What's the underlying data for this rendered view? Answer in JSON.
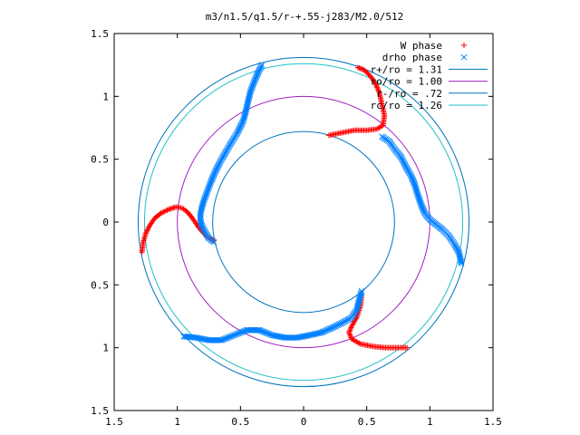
{
  "chart_data": {
    "type": "scatter",
    "title": "m3/n1.5/q1.5/r-+.55-j283/M2.0/512",
    "xlabel": "",
    "ylabel": "",
    "xlim": [
      -1.5,
      1.5
    ],
    "ylim": [
      -1.5,
      1.5
    ],
    "x_ticks": [
      -1.5,
      -1,
      -0.5,
      0,
      0.5,
      1,
      1.5
    ],
    "y_ticks": [
      -1.5,
      -1,
      -0.5,
      0,
      0.5,
      1,
      1.5
    ],
    "x_tick_labels": [
      "1.5",
      "1",
      "0.5",
      "0",
      "0.5",
      "1",
      "1.5"
    ],
    "y_tick_labels": [
      "1.5",
      "1",
      "0.5",
      "0",
      "0.5",
      "1",
      "1.5"
    ],
    "grid": false,
    "legend_position": "top-right",
    "legend": [
      {
        "label": "W phase",
        "marker": "+",
        "color": "#ff0000"
      },
      {
        "label": "drho phase",
        "marker": "x",
        "color": "#0080ff"
      },
      {
        "label": "r+/ro = 1.31",
        "line": true,
        "color": "#0072bd"
      },
      {
        "label": "ro/ro = 1.00",
        "line": true,
        "color": "#a020c0"
      },
      {
        "label": "r-/ro = .72",
        "line": true,
        "color": "#0072bd"
      },
      {
        "label": "rc/ro = 1.26",
        "line": true,
        "color": "#20c0c8"
      }
    ],
    "circles": [
      {
        "r": 1.31,
        "color": "#0072bd"
      },
      {
        "r": 1.0,
        "color": "#a020c0"
      },
      {
        "r": 0.72,
        "color": "#0072bd"
      },
      {
        "r": 1.26,
        "color": "#20c0c8"
      }
    ],
    "series": [
      {
        "name": "W phase",
        "marker": "+",
        "color": "#ff0000",
        "arms": [
          [
            [
              -1.28,
              -0.24
            ],
            [
              -1.27,
              -0.16
            ],
            [
              -1.25,
              -0.09
            ],
            [
              -1.22,
              -0.03
            ],
            [
              -1.18,
              0.03
            ],
            [
              -1.13,
              0.07
            ],
            [
              -1.07,
              0.1
            ],
            [
              -1.01,
              0.12
            ],
            [
              -0.96,
              0.11
            ],
            [
              -0.92,
              0.08
            ],
            [
              -0.88,
              0.03
            ],
            [
              -0.84,
              -0.03
            ],
            [
              -0.8,
              -0.08
            ],
            [
              -0.76,
              -0.12
            ],
            [
              -0.71,
              -0.15
            ]
          ],
          [
            [
              0.2,
              0.69
            ],
            [
              0.3,
              0.71
            ],
            [
              0.4,
              0.73
            ],
            [
              0.5,
              0.73
            ],
            [
              0.58,
              0.74
            ],
            [
              0.63,
              0.77
            ],
            [
              0.64,
              0.85
            ],
            [
              0.62,
              0.94
            ],
            [
              0.6,
              1.03
            ],
            [
              0.57,
              1.1
            ],
            [
              0.53,
              1.16
            ],
            [
              0.48,
              1.21
            ],
            [
              0.43,
              1.23
            ]
          ],
          [
            [
              0.46,
              -0.58
            ],
            [
              0.45,
              -0.67
            ],
            [
              0.42,
              -0.76
            ],
            [
              0.38,
              -0.83
            ],
            [
              0.36,
              -0.88
            ],
            [
              0.38,
              -0.93
            ],
            [
              0.45,
              -0.97
            ],
            [
              0.55,
              -0.99
            ],
            [
              0.65,
              -1.0
            ],
            [
              0.75,
              -1.0
            ],
            [
              0.82,
              -1.0
            ]
          ]
        ]
      },
      {
        "name": "drho phase",
        "marker": "x",
        "color": "#0080ff",
        "arms": [
          [
            [
              -0.33,
              1.25
            ],
            [
              -0.36,
              1.19
            ],
            [
              -0.39,
              1.12
            ],
            [
              -0.42,
              1.04
            ],
            [
              -0.44,
              0.96
            ],
            [
              -0.46,
              0.87
            ],
            [
              -0.48,
              0.8
            ],
            [
              -0.53,
              0.7
            ],
            [
              -0.58,
              0.62
            ],
            [
              -0.62,
              0.55
            ],
            [
              -0.66,
              0.48
            ],
            [
              -0.7,
              0.4
            ],
            [
              -0.73,
              0.33
            ],
            [
              -0.76,
              0.25
            ],
            [
              -0.79,
              0.17
            ],
            [
              -0.81,
              0.1
            ],
            [
              -0.82,
              0.04
            ],
            [
              -0.81,
              -0.02
            ],
            [
              -0.78,
              -0.08
            ],
            [
              -0.75,
              -0.13
            ],
            [
              -0.71,
              -0.16
            ]
          ],
          [
            [
              0.62,
              0.68
            ],
            [
              0.68,
              0.64
            ],
            [
              0.72,
              0.58
            ],
            [
              0.77,
              0.52
            ],
            [
              0.81,
              0.44
            ],
            [
              0.85,
              0.37
            ],
            [
              0.88,
              0.3
            ],
            [
              0.9,
              0.23
            ],
            [
              0.93,
              0.14
            ],
            [
              0.96,
              0.07
            ],
            [
              1.0,
              0.02
            ],
            [
              1.05,
              -0.02
            ],
            [
              1.1,
              -0.06
            ],
            [
              1.15,
              -0.11
            ],
            [
              1.19,
              -0.17
            ],
            [
              1.23,
              -0.24
            ],
            [
              1.25,
              -0.33
            ]
          ],
          [
            [
              0.46,
              -0.55
            ],
            [
              0.44,
              -0.62
            ],
            [
              0.42,
              -0.7
            ],
            [
              0.38,
              -0.76
            ],
            [
              0.31,
              -0.8
            ],
            [
              0.23,
              -0.84
            ],
            [
              0.14,
              -0.88
            ],
            [
              0.05,
              -0.9
            ],
            [
              -0.05,
              -0.92
            ],
            [
              -0.15,
              -0.92
            ],
            [
              -0.25,
              -0.9
            ],
            [
              -0.35,
              -0.86
            ],
            [
              -0.45,
              -0.86
            ],
            [
              -0.55,
              -0.9
            ],
            [
              -0.65,
              -0.94
            ],
            [
              -0.75,
              -0.94
            ],
            [
              -0.85,
              -0.92
            ],
            [
              -0.95,
              -0.91
            ]
          ]
        ]
      }
    ]
  }
}
